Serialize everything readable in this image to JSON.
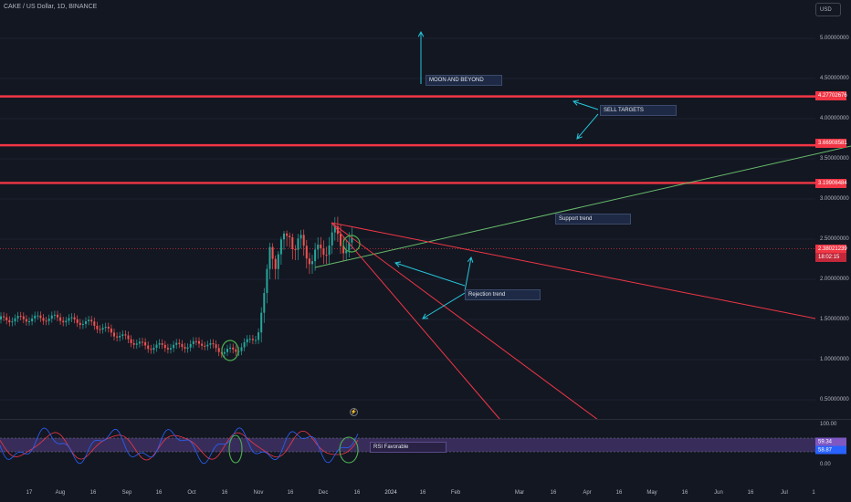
{
  "header": {
    "symbol_title": "CAKE / US Dollar, 1D, BINANCE",
    "currency": "USD"
  },
  "price_axis": {
    "labels": [
      "5.00000000",
      "4.50000000",
      "4.00000000",
      "3.50000000",
      "3.00000000",
      "2.50000000",
      "2.00000000",
      "1.50000000",
      "1.00000000",
      "0.50000000"
    ],
    "tags": {
      "level_1": "4.27702676",
      "level_2": "3.66908581",
      "level_3": "3.19906484",
      "current_price": "2.38021239",
      "countdown": "18:02:15"
    }
  },
  "rsi_axis": {
    "labels": [
      "100.00",
      "0.00"
    ],
    "rsi_value": "59.34",
    "signal_value": "58.87"
  },
  "time_axis": {
    "labels": [
      "17",
      "Aug",
      "16",
      "Sep",
      "16",
      "Oct",
      "16",
      "Nov",
      "16",
      "Dec",
      "16",
      "2024",
      "16",
      "Feb",
      "Mar",
      "16",
      "Apr",
      "16",
      "May",
      "16",
      "Jun",
      "16",
      "Jul"
    ]
  },
  "annotations": {
    "moon": "MOON AND BEYOND",
    "sell_targets": "SELL TARGETS",
    "support_trend": "Support trend",
    "rejection_trend": "Rejection trend",
    "rsi_favorable": "RSI Favorable",
    "lightning": "⚡"
  },
  "colors": {
    "background": "#131722",
    "horizontal_level": "#f23645",
    "support_line": "#66bb6a",
    "rejection_line": "#f23645",
    "arrow": "#26c6da",
    "candle_up": "#26a69a",
    "candle_down": "#ef5350",
    "rsi_band": "#7e57c2",
    "rsi_line": "#2962ff",
    "rsi_signal": "#f23645",
    "circle_mark": "#4caf50"
  }
}
